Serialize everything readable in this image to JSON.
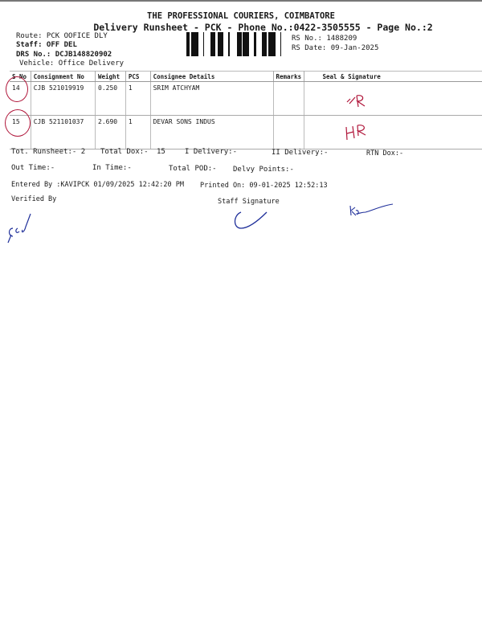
{
  "header": {
    "company": "THE PROFESSIONAL COURIERS, COIMBATORE",
    "subtitle": "Delivery Runsheet - PCK - Phone No.:0422-3505555 - Page No.:2",
    "route": "Route: PCK OOFICE DLY",
    "staff": "Staff: OFF DEL",
    "drs_no": "DRS No.: DCJB148820902",
    "vehicle": "Vehicle: Office Delivery",
    "rs_no": "RS No.: 1488209",
    "rs_date": "RS Date: 09-Jan-2025"
  },
  "table": {
    "columns": [
      "S No",
      "Consignment No",
      "Weight",
      "PCS",
      "Consignee Details",
      "Remarks",
      "Seal & Signature"
    ],
    "rows": [
      {
        "sno": "14",
        "consignment": "CJB 521019919",
        "weight": "0.250",
        "pcs": "1",
        "consignee": "SRIM ATCHYAM",
        "remarks": "",
        "signature": "HR"
      },
      {
        "sno": "15",
        "consignment": "CJB 521101037",
        "weight": "2.690",
        "pcs": "1",
        "consignee": "DEVAR SONS INDUS",
        "remarks": "",
        "signature": "HR"
      }
    ]
  },
  "footer": {
    "tot_runsheet": "Tot. Runsheet:- 2",
    "total_dox": "Total Dox:-",
    "total_dox_value": "15",
    "i_delivery": "I Delivery:-",
    "ii_delivery": "II Delivery:-",
    "rtn_dox": "RTN Dox:-",
    "out_time": "Out Time:-",
    "in_time": "In Time:-",
    "total_pod": "Total POD:-",
    "delvy_points": "Delvy Points:-",
    "entered_by": "Entered By :KAVIPCK 01/09/2025 12:42:20 PM",
    "printed_on": "Printed On: 09-01-2025 12:52:13",
    "verified_by": "Verified By",
    "staff_signature": "Staff Signature"
  },
  "colors": {
    "ink_red": "#b0163a",
    "ink_blue": "#1f2f9a"
  }
}
